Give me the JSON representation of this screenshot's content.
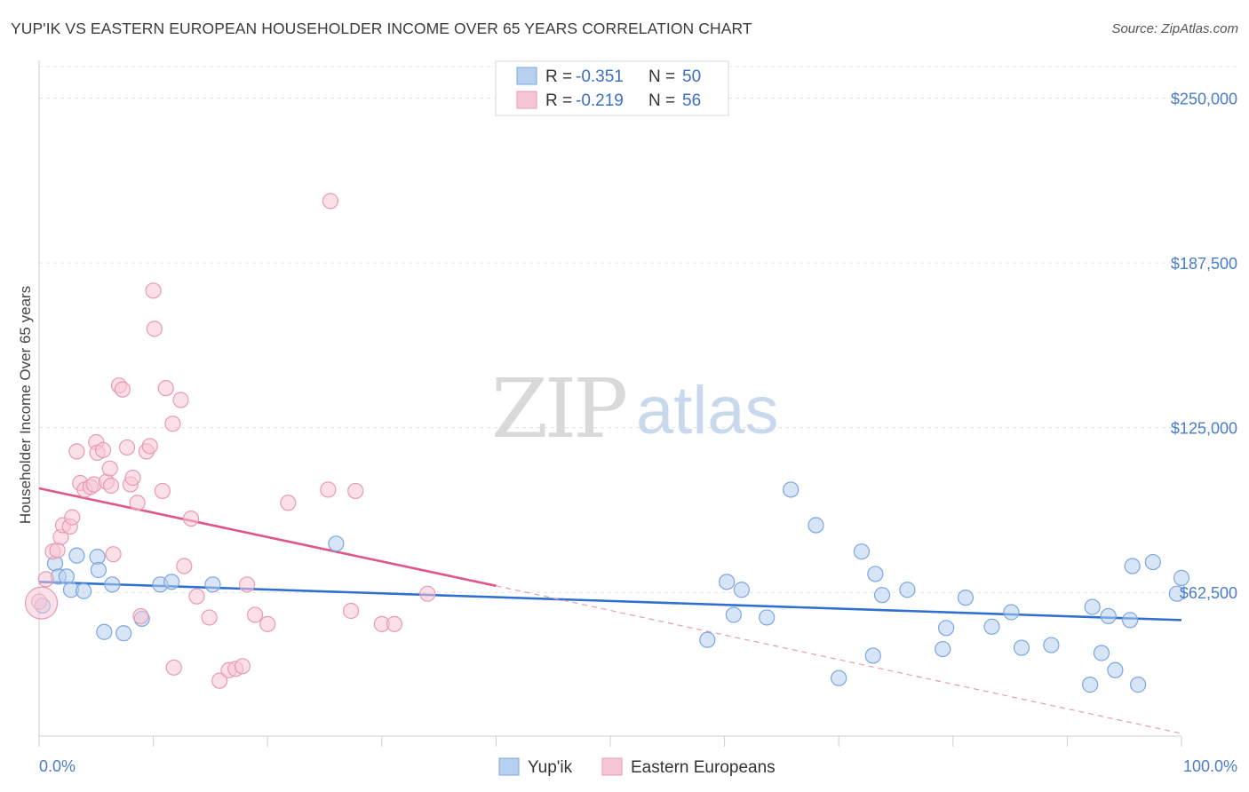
{
  "title": "YUP'IK VS EASTERN EUROPEAN HOUSEHOLDER INCOME OVER 65 YEARS CORRELATION CHART",
  "source": "Source: ZipAtlas.com",
  "watermark": {
    "zip": "ZIP",
    "atlas": "atlas"
  },
  "legend": {
    "r_label": "R = ",
    "n_label": "N = ",
    "rows": [
      {
        "r": "-0.351",
        "n": "50"
      },
      {
        "r": "-0.219",
        "n": "56"
      }
    ]
  },
  "chart_data": {
    "type": "scatter",
    "title": "YUP'IK VS EASTERN EUROPEAN HOUSEHOLDER INCOME OVER 65 YEARS CORRELATION CHART",
    "xlabel": "",
    "ylabel": "Householder Income Over 65 years",
    "xlim": [
      0,
      100
    ],
    "ylim": [
      8000,
      262000
    ],
    "x_tick_labels": [
      "0.0%",
      "100.0%"
    ],
    "y_ticks": [
      62500,
      125000,
      187500,
      250000
    ],
    "y_tick_labels": [
      "$62,500",
      "$125,000",
      "$187,500",
      "$250,000"
    ],
    "grid": true,
    "legend_position": "top-center",
    "series": [
      {
        "name": "Yup'ik",
        "color": "#7aa6e0",
        "fill": "#b8d0f0",
        "trend": {
          "x0": 0,
          "y0": 66500,
          "x1": 100,
          "y1": 52000,
          "color": "#2f6fcf"
        },
        "points": [
          [
            0.3,
            57500
          ],
          [
            1.4,
            73500
          ],
          [
            1.7,
            68500
          ],
          [
            2.4,
            68500
          ],
          [
            2.8,
            63500
          ],
          [
            3.3,
            76500
          ],
          [
            3.9,
            63000
          ],
          [
            5.1,
            76000
          ],
          [
            5.2,
            71000
          ],
          [
            5.7,
            47500
          ],
          [
            6.4,
            65500
          ],
          [
            7.4,
            47000
          ],
          [
            9.0,
            52500
          ],
          [
            10.6,
            65500
          ],
          [
            11.6,
            66500
          ],
          [
            15.2,
            65500
          ],
          [
            26.0,
            81000
          ],
          [
            58.5,
            44500
          ],
          [
            60.2,
            66500
          ],
          [
            61.5,
            63500
          ],
          [
            60.8,
            54000
          ],
          [
            63.7,
            53000
          ],
          [
            65.8,
            101500
          ],
          [
            68.0,
            88000
          ],
          [
            70.0,
            30000
          ],
          [
            72.0,
            78000
          ],
          [
            73.0,
            38500
          ],
          [
            73.2,
            69500
          ],
          [
            73.8,
            61500
          ],
          [
            76.0,
            63500
          ],
          [
            79.1,
            41000
          ],
          [
            79.4,
            49000
          ],
          [
            81.1,
            60500
          ],
          [
            83.4,
            49500
          ],
          [
            85.1,
            55000
          ],
          [
            86.0,
            41500
          ],
          [
            88.6,
            42500
          ],
          [
            92.0,
            27500
          ],
          [
            92.2,
            57000
          ],
          [
            93.0,
            39500
          ],
          [
            93.6,
            53500
          ],
          [
            94.2,
            33000
          ],
          [
            95.5,
            52000
          ],
          [
            95.7,
            72500
          ],
          [
            96.2,
            27500
          ],
          [
            97.5,
            74000
          ],
          [
            99.6,
            62000
          ],
          [
            100.0,
            68000
          ]
        ]
      },
      {
        "name": "Eastern Europeans",
        "color": "#e89ab3",
        "fill": "#f7c6d5",
        "trend": {
          "x0": 0,
          "y0": 102000,
          "x1": 40,
          "y1": 65000,
          "color": "#e0558a"
        },
        "trend_dashed": {
          "x0": 40,
          "y0": 65000,
          "x1": 100,
          "y1": 9000,
          "color": "#e89ab3"
        },
        "points": [
          [
            0.0,
            59000
          ],
          [
            0.6,
            67500
          ],
          [
            1.2,
            78000
          ],
          [
            1.6,
            78500
          ],
          [
            1.9,
            83500
          ],
          [
            2.1,
            88000
          ],
          [
            2.7,
            87500
          ],
          [
            2.9,
            91000
          ],
          [
            3.3,
            116000
          ],
          [
            3.6,
            104000
          ],
          [
            4.0,
            101500
          ],
          [
            4.5,
            102500
          ],
          [
            4.8,
            103500
          ],
          [
            5.0,
            119500
          ],
          [
            5.1,
            115500
          ],
          [
            5.6,
            116500
          ],
          [
            5.9,
            104500
          ],
          [
            6.2,
            109500
          ],
          [
            6.3,
            103000
          ],
          [
            6.5,
            77000
          ],
          [
            7.0,
            141000
          ],
          [
            7.3,
            139500
          ],
          [
            7.7,
            117500
          ],
          [
            8.0,
            103500
          ],
          [
            8.2,
            106000
          ],
          [
            8.6,
            96500
          ],
          [
            8.9,
            53500
          ],
          [
            9.4,
            116000
          ],
          [
            9.7,
            118000
          ],
          [
            10.0,
            177000
          ],
          [
            10.1,
            162500
          ],
          [
            10.8,
            101000
          ],
          [
            11.1,
            140000
          ],
          [
            11.7,
            126500
          ],
          [
            11.8,
            34000
          ],
          [
            12.4,
            135500
          ],
          [
            12.7,
            72500
          ],
          [
            13.3,
            90500
          ],
          [
            13.8,
            61000
          ],
          [
            14.9,
            53000
          ],
          [
            15.8,
            29000
          ],
          [
            16.6,
            33000
          ],
          [
            17.2,
            33500
          ],
          [
            17.8,
            34500
          ],
          [
            18.2,
            65500
          ],
          [
            18.9,
            54000
          ],
          [
            20.0,
            50500
          ],
          [
            21.8,
            96500
          ],
          [
            25.3,
            101500
          ],
          [
            25.5,
            211000
          ],
          [
            27.3,
            55500
          ],
          [
            27.7,
            101000
          ],
          [
            30.0,
            50500
          ],
          [
            31.1,
            50500
          ],
          [
            34.0,
            62000
          ]
        ]
      }
    ]
  }
}
